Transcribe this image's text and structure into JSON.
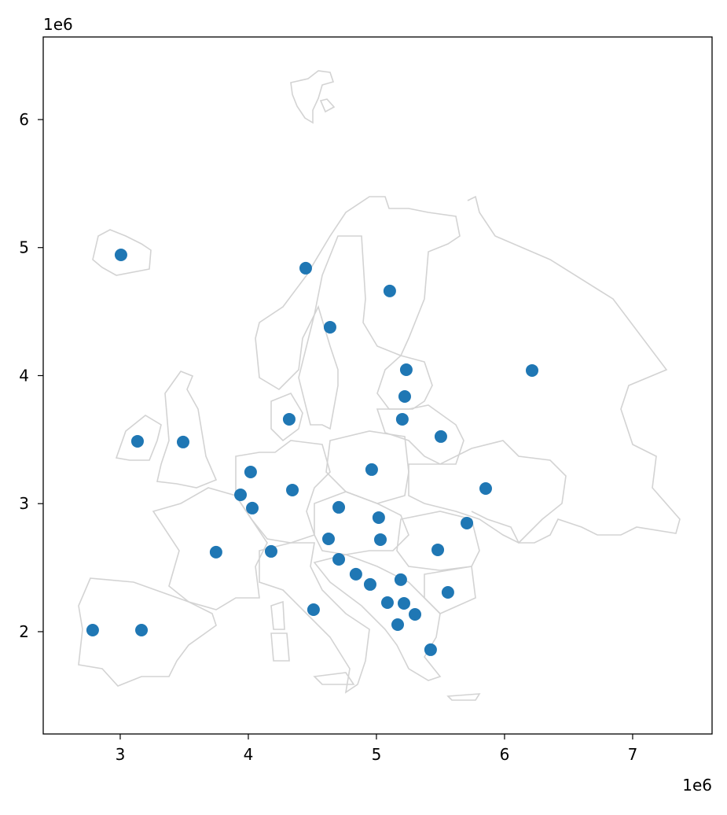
{
  "chart_data": {
    "type": "scatter",
    "title": "",
    "xlabel": "",
    "ylabel": "",
    "x_offset_label": "1e6",
    "y_offset_label": "1e6",
    "xlim": [
      2.399,
      7.62
    ],
    "ylim": [
      1.201,
      6.645
    ],
    "xticks": [
      3,
      4,
      5,
      6,
      7
    ],
    "yticks": [
      2,
      3,
      4,
      5,
      6
    ],
    "grid": false,
    "marker_color": "#1f77b4",
    "outline_color": "#d3d3d3",
    "points": [
      [
        3.006,
        4.943
      ],
      [
        4.448,
        4.839
      ],
      [
        5.104,
        4.661
      ],
      [
        4.638,
        4.378
      ],
      [
        5.233,
        4.046
      ],
      [
        6.215,
        4.04
      ],
      [
        5.221,
        3.837
      ],
      [
        4.319,
        3.659
      ],
      [
        5.202,
        3.659
      ],
      [
        3.135,
        3.487
      ],
      [
        3.491,
        3.481
      ],
      [
        5.503,
        3.524
      ],
      [
        4.963,
        3.266
      ],
      [
        4.018,
        3.247
      ],
      [
        4.344,
        3.106
      ],
      [
        3.939,
        3.069
      ],
      [
        5.853,
        3.118
      ],
      [
        4.031,
        2.965
      ],
      [
        4.706,
        2.971
      ],
      [
        5.018,
        2.891
      ],
      [
        5.706,
        2.848
      ],
      [
        4.626,
        2.725
      ],
      [
        5.031,
        2.719
      ],
      [
        3.748,
        2.621
      ],
      [
        4.178,
        2.627
      ],
      [
        5.479,
        2.639
      ],
      [
        4.706,
        2.565
      ],
      [
        4.84,
        2.449
      ],
      [
        4.951,
        2.369
      ],
      [
        5.19,
        2.406
      ],
      [
        5.558,
        2.307
      ],
      [
        5.086,
        2.227
      ],
      [
        5.215,
        2.221
      ],
      [
        5.301,
        2.135
      ],
      [
        4.509,
        2.172
      ],
      [
        5.166,
        2.055
      ],
      [
        2.785,
        2.012
      ],
      [
        3.166,
        2.012
      ],
      [
        5.423,
        1.859
      ]
    ]
  }
}
